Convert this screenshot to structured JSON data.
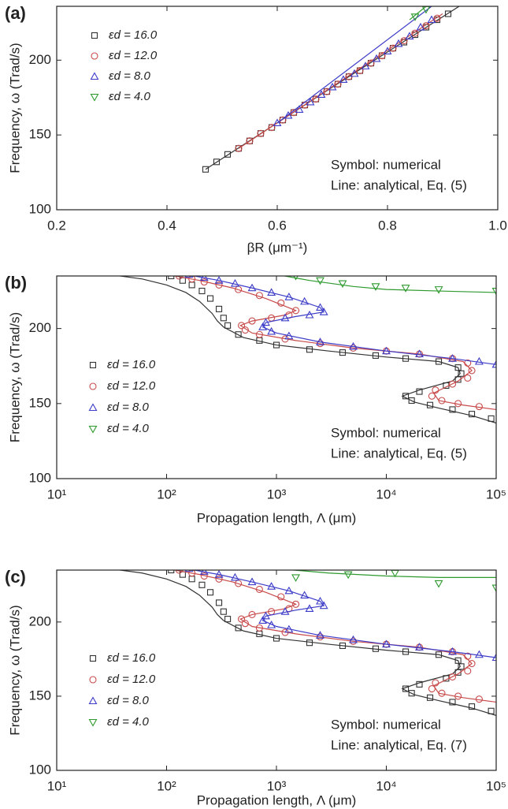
{
  "chart_data": [
    {
      "type": "scatter-line",
      "label": "(a)",
      "xlabel": "βR (μm⁻¹)",
      "ylabel": "Frequency, ω (Trad/s)",
      "xscale": "linear",
      "xlim": [
        0.2,
        1.0
      ],
      "ylim": [
        100,
        236
      ],
      "xticks": [
        0.2,
        0.4,
        0.6,
        0.8,
        {
          "value": 1.0,
          "label": "1.0"
        }
      ],
      "yticks": [
        100,
        150,
        200
      ],
      "legend": "upper left",
      "annotations": [
        "Symbol: numerical",
        "Line: analytical, Eq. (5)"
      ],
      "series": [
        {
          "name": "εd = 16.0",
          "color": "#333333",
          "marker": "square",
          "x": [
            0.47,
            0.49,
            0.51,
            0.53,
            0.55,
            0.57,
            0.59,
            0.61,
            0.63,
            0.65,
            0.67,
            0.69,
            0.71,
            0.73,
            0.75,
            0.77,
            0.79,
            0.81,
            0.83,
            0.85,
            0.87,
            0.89,
            0.91
          ],
          "values": [
            127,
            132,
            137,
            141,
            146,
            151,
            155,
            160,
            165,
            170,
            174,
            179,
            184,
            189,
            193,
            198,
            203,
            208,
            212,
            217,
            222,
            227,
            231
          ],
          "line_x": [
            0.47,
            0.7,
            0.93
          ],
          "line_values": [
            127,
            182,
            236
          ]
        },
        {
          "name": "εd = 12.0",
          "color": "#c84a4a",
          "marker": "circle",
          "x": [
            0.53,
            0.55,
            0.57,
            0.59,
            0.61,
            0.63,
            0.65,
            0.67,
            0.69,
            0.71,
            0.73,
            0.75,
            0.77,
            0.79,
            0.81,
            0.83,
            0.85,
            0.87,
            0.89
          ],
          "values": [
            141,
            146,
            151,
            155,
            160,
            165,
            170,
            174,
            179,
            184,
            189,
            193,
            198,
            203,
            208,
            213,
            218,
            223,
            228
          ],
          "line_x": [
            0.53,
            0.9
          ],
          "line_values": [
            141,
            231
          ]
        },
        {
          "name": "εd = 8.0",
          "color": "#3c3cc8",
          "marker": "triangle-up",
          "x": [
            0.6,
            0.62,
            0.64,
            0.66,
            0.68,
            0.7,
            0.72,
            0.74,
            0.76,
            0.78,
            0.8,
            0.82,
            0.84,
            0.86,
            0.88
          ],
          "values": [
            158,
            163,
            167,
            172,
            177,
            182,
            187,
            191,
            196,
            201,
            206,
            211,
            216,
            222,
            227
          ],
          "line_x": [
            0.6,
            0.88
          ],
          "line_values": [
            158,
            236
          ]
        },
        {
          "name": "εd = 4.0",
          "color": "#2e9a2e",
          "marker": "triangle-down",
          "x": [
            0.85,
            0.87
          ],
          "values": [
            229,
            234
          ],
          "line_x": [
            0.84,
            0.87
          ],
          "line_values": [
            227,
            236
          ]
        }
      ]
    },
    {
      "type": "scatter-line",
      "label": "(b)",
      "xlabel": "Propagation length, Λ (μm)",
      "ylabel": "Frequency, ω (Trad/s)",
      "xscale": "log",
      "xlim": [
        10,
        100000
      ],
      "ylim": [
        100,
        235
      ],
      "xticks": [
        {
          "value": 10,
          "label": "10¹"
        },
        {
          "value": 100,
          "label": "10²"
        },
        {
          "value": 1000,
          "label": "10³"
        },
        {
          "value": 10000,
          "label": "10⁴"
        },
        {
          "value": 100000,
          "label": "10⁵"
        }
      ],
      "yticks": [
        100,
        150,
        200
      ],
      "legend": "center left",
      "annotations": [
        "Symbol: numerical",
        "Line: analytical, Eq. (5)"
      ],
      "series": [
        {
          "name": "εd = 16.0",
          "color": "#333333",
          "marker": "square",
          "x": [
            110,
            140,
            170,
            210,
            250,
            300,
            330,
            360,
            450,
            700,
            1000,
            2000,
            4000,
            8000,
            15000,
            30000,
            45000,
            48000,
            45000,
            35000,
            20000,
            15000,
            17000,
            25000,
            40000,
            60000,
            90000
          ],
          "values": [
            235,
            232,
            229,
            225,
            220,
            213,
            207,
            202,
            196,
            192,
            189,
            186,
            184,
            182,
            180,
            178,
            174,
            170,
            166,
            162,
            158,
            155,
            152,
            149,
            146,
            143,
            140
          ],
          "line_x": [
            30,
            60,
            100,
            150,
            200,
            260,
            290,
            330,
            500,
            1000,
            3000,
            10000,
            30000,
            45000,
            47000,
            40000,
            20000,
            14000,
            18000,
            30000,
            60000,
            100000
          ],
          "line_values": [
            236,
            233,
            229,
            224,
            218,
            210,
            205,
            201,
            194,
            189,
            185,
            181,
            178,
            174,
            170,
            165,
            159,
            155,
            151,
            147,
            142,
            137
          ]
        },
        {
          "name": "εd = 12.0",
          "color": "#c84a4a",
          "marker": "circle",
          "x": [
            130,
            170,
            220,
            300,
            450,
            700,
            1100,
            1500,
            1300,
            900,
            600,
            480,
            520,
            700,
            1200,
            2500,
            5000,
            10000,
            20000,
            40000,
            55000,
            60000,
            55000,
            40000,
            28000,
            26000,
            32000,
            45000,
            70000
          ],
          "values": [
            235,
            233,
            231,
            229,
            226,
            222,
            217,
            212,
            209,
            207,
            205,
            202,
            199,
            196,
            193,
            190,
            187,
            185,
            183,
            180,
            177,
            172,
            167,
            163,
            159,
            155,
            152,
            150,
            148
          ],
          "line_x": [
            100,
            200,
            400,
            800,
            1500,
            1200,
            600,
            470,
            600,
            1500,
            5000,
            20000,
            50000,
            60000,
            45000,
            27000,
            30000,
            50000,
            100000
          ],
          "line_values": [
            236,
            232,
            227,
            220,
            212,
            209,
            205,
            202,
            197,
            192,
            187,
            183,
            178,
            172,
            165,
            157,
            152,
            149,
            146
          ]
        },
        {
          "name": "εd = 8.0",
          "color": "#3c3cc8",
          "marker": "triangle-up",
          "x": [
            160,
            220,
            300,
            420,
            600,
            900,
            1300,
            1800,
            2500,
            2700,
            2000,
            1200,
            800,
            750,
            900,
            1300,
            2500,
            5000,
            10000,
            20000,
            40000,
            70000,
            100000
          ],
          "values": [
            236,
            234,
            232,
            230,
            227,
            224,
            221,
            218,
            214,
            211,
            209,
            207,
            204,
            201,
            198,
            195,
            191,
            188,
            185,
            183,
            180,
            178,
            176
          ],
          "line_x": [
            150,
            300,
            600,
            1300,
            2500,
            2700,
            1500,
            800,
            750,
            1000,
            2500,
            10000,
            40000,
            100000
          ],
          "line_values": [
            236,
            232,
            227,
            221,
            214,
            211,
            208,
            204,
            201,
            197,
            191,
            185,
            180,
            176
          ]
        },
        {
          "name": "εd = 4.0",
          "color": "#2e9a2e",
          "marker": "triangle-down",
          "x": [
            1500,
            2500,
            4000,
            8000,
            15000,
            30000,
            100000
          ],
          "values": [
            235,
            232,
            230,
            228,
            227,
            226,
            225
          ],
          "line_x": [
            1000,
            2000,
            5000,
            10000,
            30000,
            100000
          ],
          "line_values": [
            236,
            232,
            228,
            226,
            225,
            224
          ]
        }
      ]
    },
    {
      "type": "scatter-line",
      "label": "(c)",
      "xlabel": "Propagation length, Λ (μm)",
      "ylabel": "Frequency, ω (Trad/s)",
      "xscale": "log",
      "xlim": [
        10,
        100000
      ],
      "ylim": [
        100,
        235
      ],
      "xticks": [
        {
          "value": 10,
          "label": "10¹"
        },
        {
          "value": 100,
          "label": "10²"
        },
        {
          "value": 1000,
          "label": "10³"
        },
        {
          "value": 10000,
          "label": "10⁴"
        },
        {
          "value": 100000,
          "label": "10⁵"
        }
      ],
      "yticks": [
        100,
        150,
        200
      ],
      "legend": "center left",
      "annotations": [
        "Symbol: numerical",
        "Line: analytical, Eq. (7)"
      ],
      "series": [
        {
          "name": "εd = 16.0",
          "color": "#333333",
          "marker": "square",
          "x": [
            110,
            140,
            170,
            210,
            250,
            300,
            330,
            360,
            450,
            700,
            1000,
            2000,
            4000,
            8000,
            15000,
            30000,
            45000,
            48000,
            45000,
            35000,
            20000,
            15000,
            17000,
            25000,
            40000,
            60000,
            90000
          ],
          "values": [
            235,
            232,
            229,
            225,
            220,
            213,
            207,
            202,
            196,
            192,
            189,
            186,
            184,
            182,
            180,
            178,
            174,
            170,
            166,
            162,
            158,
            155,
            152,
            149,
            146,
            143,
            140
          ],
          "line_x": [
            30,
            60,
            100,
            150,
            200,
            260,
            290,
            330,
            500,
            1000,
            3000,
            10000,
            30000,
            45000,
            47000,
            40000,
            20000,
            14000,
            18000,
            30000,
            60000,
            100000
          ],
          "line_values": [
            236,
            233,
            229,
            224,
            218,
            210,
            205,
            201,
            194,
            189,
            185,
            181,
            178,
            174,
            170,
            165,
            159,
            155,
            151,
            147,
            142,
            137
          ]
        },
        {
          "name": "εd = 12.0",
          "color": "#c84a4a",
          "marker": "circle",
          "x": [
            130,
            170,
            220,
            300,
            450,
            700,
            1100,
            1500,
            1300,
            900,
            600,
            480,
            520,
            700,
            1200,
            2500,
            5000,
            10000,
            20000,
            40000,
            55000,
            60000,
            55000,
            40000,
            28000,
            26000,
            32000,
            45000,
            70000
          ],
          "values": [
            235,
            233,
            231,
            229,
            226,
            222,
            217,
            212,
            209,
            207,
            205,
            202,
            199,
            196,
            193,
            190,
            187,
            185,
            183,
            180,
            177,
            172,
            167,
            163,
            159,
            155,
            152,
            150,
            148
          ],
          "line_x": [
            100,
            200,
            400,
            800,
            1500,
            1200,
            600,
            470,
            600,
            1500,
            5000,
            20000,
            50000,
            60000,
            45000,
            27000,
            30000,
            50000,
            100000
          ],
          "line_values": [
            236,
            232,
            227,
            220,
            212,
            209,
            205,
            202,
            197,
            192,
            187,
            183,
            178,
            172,
            165,
            157,
            152,
            149,
            146
          ]
        },
        {
          "name": "εd = 8.0",
          "color": "#3c3cc8",
          "marker": "triangle-up",
          "x": [
            160,
            220,
            300,
            420,
            600,
            900,
            1300,
            1800,
            2500,
            2700,
            2000,
            1200,
            800,
            750,
            900,
            1300,
            2500,
            5000,
            10000,
            20000,
            40000,
            70000,
            100000
          ],
          "values": [
            236,
            234,
            232,
            230,
            227,
            224,
            221,
            218,
            214,
            211,
            209,
            207,
            204,
            201,
            198,
            195,
            191,
            188,
            185,
            183,
            180,
            178,
            176
          ],
          "line_x": [
            150,
            300,
            600,
            1300,
            2500,
            2700,
            1500,
            800,
            750,
            1000,
            2500,
            10000,
            40000,
            100000
          ],
          "line_values": [
            236,
            232,
            227,
            221,
            214,
            211,
            208,
            204,
            201,
            197,
            191,
            185,
            180,
            176
          ]
        },
        {
          "name": "εd = 4.0",
          "color": "#2e9a2e",
          "marker": "triangle-down",
          "x": [
            1500,
            4500,
            12000,
            30000,
            100000
          ],
          "values": [
            230,
            232,
            233,
            226,
            223
          ],
          "line_x": [
            1000,
            3000,
            10000,
            30000,
            100000
          ],
          "line_values": [
            236,
            233,
            231,
            230,
            230
          ]
        }
      ]
    }
  ]
}
